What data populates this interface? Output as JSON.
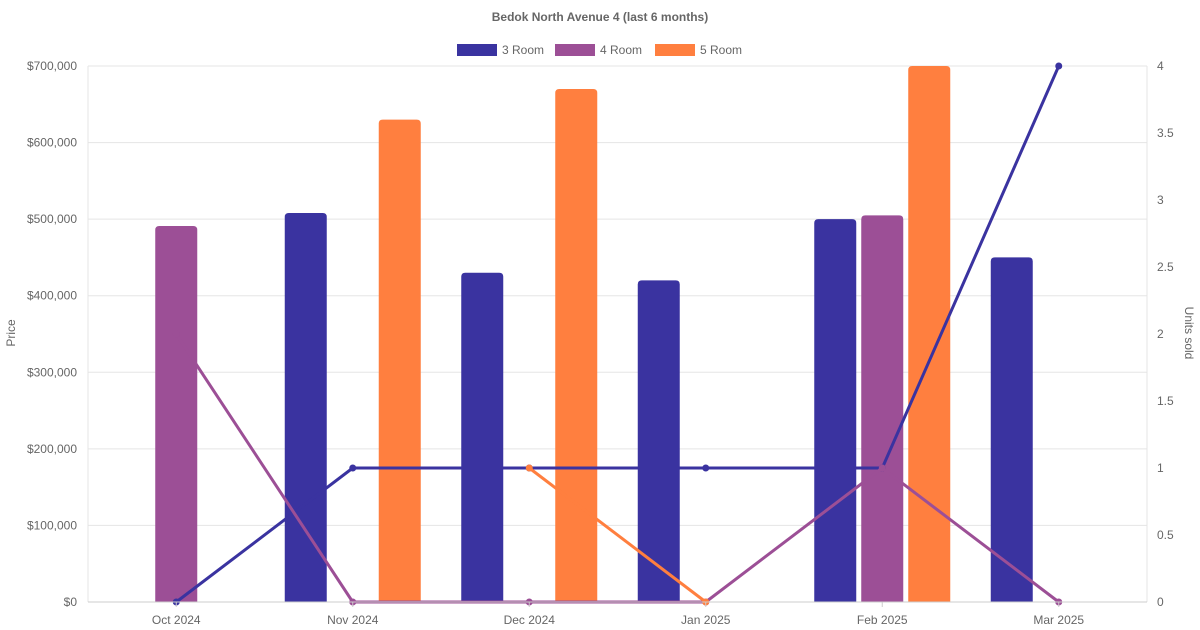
{
  "chart_data": {
    "type": "bar",
    "title": "Bedok North Avenue 4 (last 6 months)",
    "categories": [
      "Oct 2024",
      "Nov 2024",
      "Dec 2024",
      "Jan 2025",
      "Feb 2025",
      "Mar 2025"
    ],
    "ylabel": "Price",
    "y2label": "Units sold",
    "ylim": [
      0,
      700000
    ],
    "y2lim": [
      0,
      4
    ],
    "yticks": [
      "$0",
      "$100,000",
      "$200,000",
      "$300,000",
      "$400,000",
      "$500,000",
      "$600,000",
      "$700,000"
    ],
    "y2ticks": [
      "0",
      "0.5",
      "1",
      "1.5",
      "2",
      "2.5",
      "3",
      "3.5",
      "4"
    ],
    "legend_position": "top-center",
    "grid": true,
    "series": [
      {
        "name": "3 Room",
        "color": "#3a33a0",
        "price": [
          null,
          508000,
          430000,
          420000,
          500000,
          450000
        ],
        "units": [
          0,
          1,
          1,
          1,
          1,
          4
        ]
      },
      {
        "name": "4 Room",
        "color": "#9c4f96",
        "price": [
          491000,
          null,
          null,
          null,
          505000,
          null
        ],
        "units": [
          2,
          0,
          0,
          0,
          1,
          0
        ]
      },
      {
        "name": "5 Room",
        "color": "#ff7f3f",
        "price": [
          null,
          630000,
          670000,
          null,
          700000,
          null
        ],
        "units": [
          null,
          null,
          1,
          0,
          null,
          null
        ]
      }
    ]
  }
}
